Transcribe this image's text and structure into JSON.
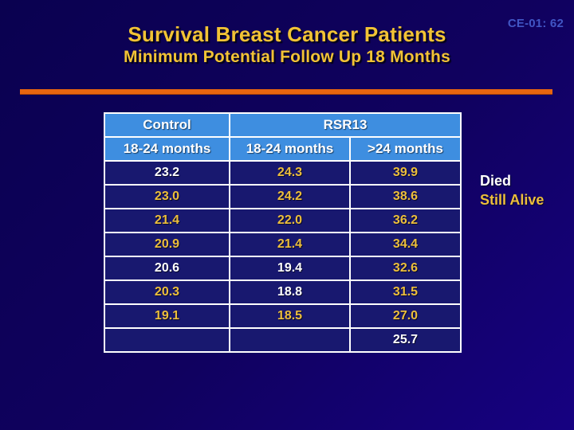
{
  "slide": {
    "code": "CE-01: 62",
    "title": "Survival Breast Cancer Patients",
    "subtitle": "Minimum Potential Follow Up 18 Months"
  },
  "colors": {
    "background_top": "#0a0150",
    "background_bottom": "#160181",
    "title_gold": "#f2c335",
    "code_blue": "#4156c5",
    "divider_orange": "#e8650f",
    "table_header_blue": "#3e8ee0",
    "table_cell_navy": "#18186f",
    "died_color": "#ffffff",
    "still_alive_color": "#ecbe3c"
  },
  "table": {
    "group_headers": [
      {
        "label": "Control",
        "colspan": 1
      },
      {
        "label": "RSR13",
        "colspan": 2
      }
    ],
    "column_headers": [
      "18-24 months",
      "18-24 months",
      ">24 months"
    ],
    "rows": [
      [
        {
          "value": "23.2",
          "status": "died"
        },
        {
          "value": "24.3",
          "status": "alive"
        },
        {
          "value": "39.9",
          "status": "alive"
        }
      ],
      [
        {
          "value": "23.0",
          "status": "alive"
        },
        {
          "value": "24.2",
          "status": "alive"
        },
        {
          "value": "38.6",
          "status": "alive"
        }
      ],
      [
        {
          "value": "21.4",
          "status": "alive"
        },
        {
          "value": "22.0",
          "status": "alive"
        },
        {
          "value": "36.2",
          "status": "alive"
        }
      ],
      [
        {
          "value": "20.9",
          "status": "alive"
        },
        {
          "value": "21.4",
          "status": "alive"
        },
        {
          "value": "34.4",
          "status": "alive"
        }
      ],
      [
        {
          "value": "20.6",
          "status": "died"
        },
        {
          "value": "19.4",
          "status": "died"
        },
        {
          "value": "32.6",
          "status": "alive"
        }
      ],
      [
        {
          "value": "20.3",
          "status": "alive"
        },
        {
          "value": "18.8",
          "status": "died"
        },
        {
          "value": "31.5",
          "status": "alive"
        }
      ],
      [
        {
          "value": "19.1",
          "status": "alive"
        },
        {
          "value": "18.5",
          "status": "alive"
        },
        {
          "value": "27.0",
          "status": "alive"
        }
      ],
      [
        {
          "value": "",
          "status": "none"
        },
        {
          "value": "",
          "status": "none"
        },
        {
          "value": "25.7",
          "status": "died"
        }
      ]
    ]
  },
  "legend": {
    "died_label": "Died",
    "still_alive_label": "Still Alive"
  }
}
